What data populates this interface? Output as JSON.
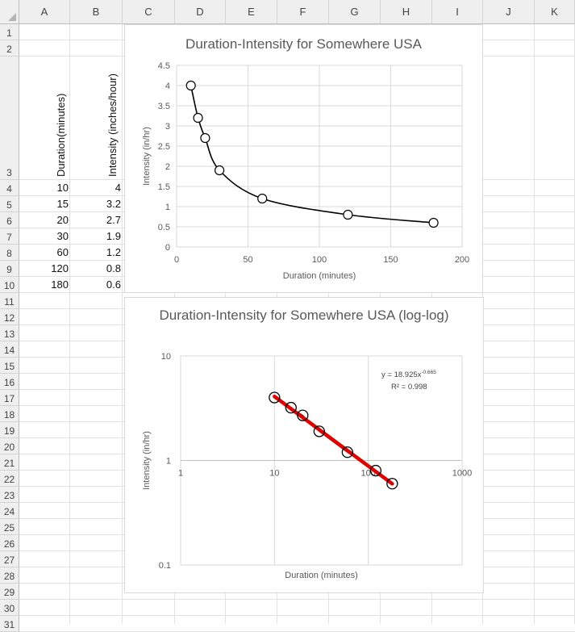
{
  "columns": [
    "A",
    "B",
    "C",
    "D",
    "E",
    "F",
    "G",
    "H",
    "I",
    "J",
    "K"
  ],
  "rows": [
    "1",
    "2",
    "3",
    "4",
    "5",
    "6",
    "7",
    "8",
    "9",
    "10",
    "11",
    "12",
    "13",
    "14",
    "15",
    "16",
    "17",
    "18",
    "19",
    "20",
    "21",
    "22",
    "23",
    "24",
    "25",
    "26",
    "27",
    "28",
    "29",
    "30",
    "31"
  ],
  "headers": {
    "duration": "Duration(minutes)",
    "intensity": "Intensity (inches/hour)"
  },
  "table": [
    {
      "duration": "10",
      "intensity": "4"
    },
    {
      "duration": "15",
      "intensity": "3.2"
    },
    {
      "duration": "20",
      "intensity": "2.7"
    },
    {
      "duration": "30",
      "intensity": "1.9"
    },
    {
      "duration": "60",
      "intensity": "1.2"
    },
    {
      "duration": "120",
      "intensity": "0.8"
    },
    {
      "duration": "180",
      "intensity": "0.6"
    }
  ],
  "chart_data": [
    {
      "type": "scatter",
      "title": "Duration-Intensity for Somewhere USA",
      "xlabel": "Duration (minutes)",
      "ylabel": "Intensity (in/hr)",
      "xlim": [
        0,
        200
      ],
      "ylim": [
        0,
        4.5
      ],
      "xticks": [
        "0",
        "50",
        "100",
        "150",
        "200"
      ],
      "yticks": [
        "0",
        "0.5",
        "1",
        "1.5",
        "2",
        "2.5",
        "3",
        "3.5",
        "4",
        "4.5"
      ],
      "grid": true,
      "series": [
        {
          "x": [
            10,
            15,
            20,
            30,
            60,
            120,
            180
          ],
          "y": [
            4,
            3.2,
            2.7,
            1.9,
            1.2,
            0.8,
            0.6
          ],
          "marker": "open-circle",
          "line": "smooth"
        }
      ],
      "line_color": "#000000"
    },
    {
      "type": "scatter",
      "title": "Duration-Intensity for Somewhere USA (log-log)",
      "xlabel": "Duration (minutes)",
      "ylabel": "Intensity (in/hr)",
      "xscale": "log",
      "yscale": "log",
      "xlim": [
        1,
        1000
      ],
      "ylim": [
        0.1,
        10
      ],
      "xticks": [
        "1",
        "10",
        "100",
        "1000"
      ],
      "yticks": [
        "0.1",
        "1",
        "10"
      ],
      "grid": true,
      "series": [
        {
          "x": [
            10,
            15,
            20,
            30,
            60,
            120,
            180
          ],
          "y": [
            4,
            3.2,
            2.7,
            1.9,
            1.2,
            0.8,
            0.6
          ],
          "marker": "open-circle",
          "line": "straight"
        }
      ],
      "trendline": {
        "equation": "y = 18.925x",
        "exponent": "-0.665",
        "r2": "R² = 0.998",
        "color": "#e00000"
      }
    }
  ]
}
